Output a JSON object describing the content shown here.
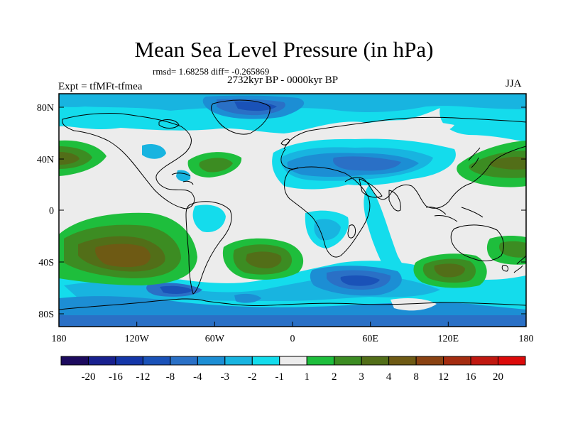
{
  "figure": {
    "title": "Mean Sea Level Pressure (in hPa)",
    "stats": "rmsd= 1.68258 diff= -0.265869",
    "period": "2732kyr BP - 0000kyr BP",
    "experiment": "Expt = tfMFt-tfmea",
    "season": "JJA"
  },
  "axes": {
    "lat_labels": [
      "80N",
      "40N",
      "0",
      "40S",
      "80S"
    ],
    "lon_labels": [
      "180",
      "120W",
      "60W",
      "0",
      "60E",
      "120E",
      "180"
    ]
  },
  "colorbar": {
    "colors": [
      "#1c0a5e",
      "#18208e",
      "#1436a8",
      "#1a52b8",
      "#2a70c6",
      "#1c8ed4",
      "#18b4e0",
      "#14dcec",
      "#ececec",
      "#1ebe3c",
      "#3c8c22",
      "#526e18",
      "#6e5a14",
      "#8a4212",
      "#a42c10",
      "#c01810",
      "#dc0a0a"
    ],
    "labels": [
      "-20",
      "-16",
      "-12",
      "-8",
      "-4",
      "-3",
      "-2",
      "-1",
      "1",
      "2",
      "3",
      "4",
      "8",
      "12",
      "16",
      "20"
    ]
  },
  "colors": {
    "neutral": "#ececec",
    "coast": "#000000"
  }
}
